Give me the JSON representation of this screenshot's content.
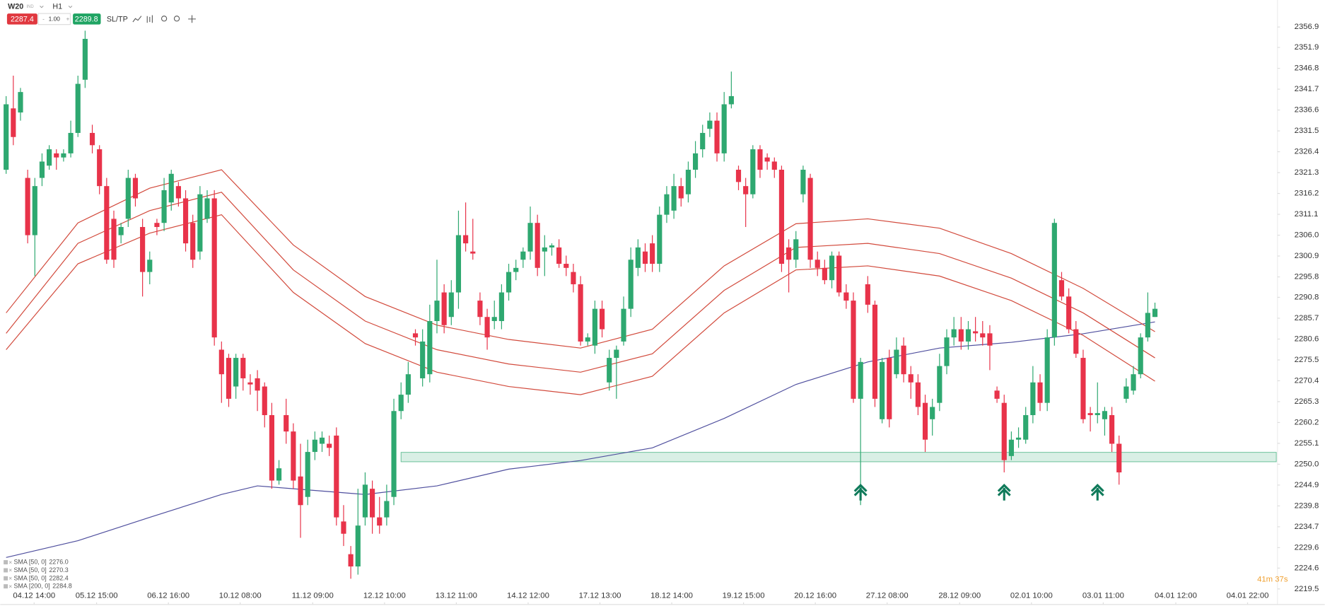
{
  "toolbar": {
    "symbol": "W20",
    "tag": "IND",
    "interval": "H1",
    "sell": "2287.4",
    "volume": "1.00",
    "buy": "2289.8",
    "sltp": "SL/TP"
  },
  "timer": "41m 37s",
  "chart_data": {
    "type": "candlestick",
    "colors": {
      "up": "#2ea870",
      "down": "#e8334a"
    },
    "xlim": [
      -0.82,
      177.06
    ],
    "ylim": [
      2215.8,
      2363.5
    ],
    "grid": false,
    "xticks": [
      {
        "value": 3.9,
        "label": "04.12 14:00"
      },
      {
        "value": 12.6,
        "label": "05.12 15:00"
      },
      {
        "value": 22.6,
        "label": "06.12 16:00"
      },
      {
        "value": 32.6,
        "label": "10.12 08:00"
      },
      {
        "value": 42.7,
        "label": "11.12 09:00"
      },
      {
        "value": 52.7,
        "label": "12.12 10:00"
      },
      {
        "value": 62.7,
        "label": "13.12 11:00"
      },
      {
        "value": 72.7,
        "label": "14.12 12:00"
      },
      {
        "value": 82.7,
        "label": "17.12 13:00"
      },
      {
        "value": 92.7,
        "label": "18.12 14:00"
      },
      {
        "value": 102.7,
        "label": "19.12 15:00"
      },
      {
        "value": 112.7,
        "label": "20.12 16:00"
      },
      {
        "value": 122.7,
        "label": "27.12 08:00"
      },
      {
        "value": 132.8,
        "label": "28.12 09:00"
      },
      {
        "value": 142.8,
        "label": "02.01 10:00"
      },
      {
        "value": 152.8,
        "label": "03.01 11:00"
      },
      {
        "value": 162.9,
        "label": "04.01 12:00"
      },
      {
        "value": 172.9,
        "label": "04.01 22:00"
      }
    ],
    "yticks": [
      2356.9,
      2351.9,
      2346.8,
      2341.7,
      2336.6,
      2331.5,
      2326.4,
      2321.3,
      2316.2,
      2311.1,
      {
        "value": 2306.0,
        "label": "2306.0"
      },
      2300.9,
      2295.8,
      2290.8,
      2285.7,
      2280.6,
      2275.5,
      2270.4,
      2265.3,
      2260.2,
      2255.1,
      {
        "value": 2250.0,
        "label": "2250.0"
      },
      2244.9,
      2239.8,
      2234.7,
      2229.6,
      2224.6,
      2219.5
    ],
    "open": [
      2322,
      2337,
      2336,
      2320,
      2306,
      2320,
      2323,
      2326,
      2325,
      2326,
      2331,
      2344,
      2331,
      2327,
      2318,
      2310,
      2306,
      2310,
      2320,
      2308,
      2297,
      2309,
      2309,
      2314,
      2318,
      2315,
      2309,
      2302,
      2310,
      2315,
      2278,
      2276,
      2269,
      2276,
      2270,
      2271,
      2269,
      2262,
      2246,
      2262,
      2258,
      2247,
      2242,
      2253,
      2255,
      2255,
      2257,
      2236,
      2228,
      2225,
      2237,
      2244,
      2237,
      2237,
      2242,
      2263,
      2267,
      2282,
      2271,
      2272,
      2285,
      2292,
      2286,
      2292,
      2306,
      2302,
      2290,
      2286,
      2285,
      2285,
      2292,
      2297,
      2300,
      2302,
      2309,
      2302,
      2303,
      2303,
      2299,
      2297,
      2294,
      2280,
      2279,
      2288,
      2270,
      2276,
      2280,
      2288,
      2298,
      2302,
      2304,
      2299,
      2311,
      2312,
      2318,
      2316,
      2322,
      2327,
      2332,
      2334,
      2326,
      2338,
      2322,
      2318,
      2316,
      2327,
      2325,
      2324,
      2322,
      2303,
      2300,
      2316,
      2320,
      2300,
      2298,
      2295,
      2301,
      2292,
      2290,
      2266,
      2294,
      2289,
      2261,
      2276,
      2272,
      2279,
      2272,
      2270,
      2265,
      2261,
      2265,
      2274,
      2281,
      2283,
      2280,
      2282.5,
      2282,
      2282,
      2268,
      2265,
      2252,
      2256,
      2256,
      2262,
      2270,
      2265,
      2281,
      2295,
      2291,
      2283,
      2276,
      2262.5,
      2262,
      2261,
      2262,
      2255,
      2266,
      2268,
      2272,
      2281,
      2286
    ],
    "high": [
      2340,
      2345,
      2342,
      2322,
      2320,
      2326,
      2328,
      2327,
      2327,
      2334,
      2345,
      2356,
      2333,
      2328,
      2320,
      2312,
      2309,
      2322,
      2321,
      2310,
      2302,
      2310,
      2320,
      2322,
      2319,
      2317,
      2311,
      2318,
      2317,
      2317,
      2280,
      2277,
      2277,
      2277,
      2272,
      2273,
      2270,
      2265,
      2251,
      2266,
      2260,
      2255,
      2256,
      2258,
      2258,
      2257,
      2259,
      2240,
      2230,
      2244,
      2248,
      2246,
      2242,
      2245,
      2266,
      2270,
      2275,
      2283,
      2283,
      2289,
      2300,
      2294,
      2295,
      2312,
      2314,
      2310,
      2292,
      2288,
      2290,
      2294,
      2299,
      2300,
      2303,
      2313,
      2311,
      2306,
      2304,
      2305,
      2301,
      2299,
      2296,
      2282,
      2290,
      2290,
      2278,
      2279,
      2291,
      2303,
      2305,
      2304,
      2306,
      2313,
      2318,
      2321,
      2320,
      2324,
      2329,
      2333,
      2336,
      2336,
      2341,
      2346,
      2323,
      2320,
      2328,
      2328,
      2326,
      2325,
      2323,
      2305,
      2307,
      2323,
      2321,
      2302,
      2300,
      2302,
      2302,
      2294,
      2292,
      2276,
      2296,
      2290,
      2276,
      2278,
      2281,
      2281,
      2274,
      2272,
      2267,
      2266,
      2277,
      2283,
      2286,
      2286,
      2285,
      2286,
      2285,
      2284,
      2269,
      2267,
      2258,
      2259,
      2264,
      2274,
      2272,
      2283,
      2310,
      2297,
      2293,
      2285,
      2278,
      2264,
      2270,
      2264,
      2264,
      2257,
      2271,
      2274,
      2282,
      2292,
      2289.5
    ],
    "low": [
      2321,
      2328,
      2334,
      2304,
      2296,
      2318,
      2322,
      2322,
      2324,
      2325,
      2330,
      2342,
      2326,
      2316,
      2299,
      2298,
      2304,
      2308,
      2313,
      2291,
      2294,
      2306,
      2307,
      2312,
      2313,
      2302,
      2298,
      2300,
      2309,
      2279,
      2265,
      2264,
      2266,
      2268,
      2267,
      2263,
      2259,
      2244,
      2245,
      2255,
      2244,
      2232,
      2240,
      2251,
      2253,
      2252,
      2235,
      2230,
      2222,
      2223,
      2235,
      2233,
      2233,
      2235,
      2240,
      2261,
      2265,
      2279,
      2269,
      2270,
      2282,
      2282,
      2284,
      2288,
      2302,
      2300,
      2284,
      2278,
      2283,
      2283,
      2290,
      2295,
      2298,
      2300,
      2296,
      2296,
      2301,
      2298,
      2296,
      2292,
      2279,
      2279,
      2277,
      2281,
      2268,
      2266,
      2279,
      2286,
      2296,
      2297,
      2297,
      2297,
      2309,
      2310,
      2313,
      2314,
      2320,
      2325,
      2330,
      2324,
      2324,
      2337,
      2317,
      2308,
      2315,
      2320,
      2322,
      2320,
      2297,
      2292,
      2298,
      2314,
      2298,
      2296,
      2294,
      2293,
      2291,
      2288,
      2265,
      2240,
      2287,
      2264,
      2260,
      2259,
      2271,
      2270,
      2266,
      2262,
      2253,
      2257,
      2263,
      2272,
      2279,
      2278,
      2278,
      2280,
      2279,
      2273,
      2265,
      2248,
      2251,
      2254,
      2255,
      2260,
      2263,
      2263,
      2279,
      2290,
      2282,
      2276,
      2260,
      2258,
      2260,
      2257,
      2253,
      2245,
      2265,
      2267,
      2271,
      2280,
      2286
    ],
    "close": [
      2338,
      2330,
      2341,
      2306,
      2318,
      2324,
      2327,
      2325,
      2326,
      2331,
      2343,
      2354,
      2328,
      2318,
      2300,
      2300,
      2308,
      2320,
      2315,
      2297,
      2300,
      2308,
      2317,
      2321,
      2315,
      2304,
      2300,
      2316,
      2315,
      2281,
      2272,
      2266,
      2276,
      2271,
      2269.5,
      2268,
      2262,
      2246,
      2249,
      2258,
      2246,
      2240,
      2253,
      2256,
      2256.5,
      2254,
      2237,
      2233,
      2225,
      2235,
      2245,
      2237,
      2235,
      2241,
      2263,
      2267,
      2272,
      2281,
      2280,
      2285,
      2290,
      2284,
      2292,
      2306,
      2304,
      2301.5,
      2286,
      2281,
      2286,
      2292,
      2297,
      2298,
      2302,
      2309,
      2298,
      2303,
      2303.5,
      2299,
      2298,
      2294,
      2280,
      2281,
      2288,
      2283,
      2276,
      2278,
      2288,
      2300,
      2303,
      2299,
      2299,
      2311,
      2316,
      2318,
      2315,
      2322,
      2326,
      2331,
      2334,
      2326,
      2338,
      2340,
      2319,
      2316,
      2327,
      2322,
      2324,
      2322,
      2299,
      2300,
      2305,
      2322,
      2300,
      2298,
      2295,
      2301,
      2292,
      2290,
      2266,
      2275,
      2289,
      2266,
      2275,
      2261,
      2278,
      2272,
      2270,
      2264,
      2256,
      2264,
      2274,
      2281,
      2283,
      2280,
      2283,
      2282,
      2281,
      2279,
      2266,
      2251,
      2256,
      2256.5,
      2262,
      2270,
      2265,
      2281,
      2309,
      2291,
      2283,
      2277,
      2261,
      2262,
      2262.5,
      2263,
      2255,
      2248,
      2269,
      2272,
      2281,
      2287,
      2288
    ],
    "series": [
      {
        "name": "SMA [50, 0]",
        "last_label": "2276.0",
        "color": "#d24a3c",
        "x": [
          0,
          10,
          20,
          30,
          40,
          50,
          60,
          70,
          80,
          90,
          100,
          110,
          120,
          130,
          140,
          150,
          160
        ],
        "values": [
          2282,
          2304,
          2312,
          2316.5,
          2297.5,
          2285,
          2278,
          2274.5,
          2272.5,
          2277,
          2292.5,
          2303,
          2304,
          2301.5,
          2295.5,
          2287,
          2276.0
        ]
      },
      {
        "name": "SMA [50, 0]",
        "last_label": "2270.3",
        "color": "#d24a3c",
        "x": [
          0,
          10,
          20,
          30,
          40,
          50,
          60,
          70,
          80,
          90,
          100,
          110,
          120,
          130,
          140,
          150,
          160
        ],
        "values": [
          2278,
          2299,
          2306.5,
          2311,
          2292,
          2279.5,
          2272.5,
          2269,
          2267,
          2271.5,
          2287,
          2297.5,
          2298.5,
          2296,
          2290,
          2281.5,
          2270.3
        ]
      },
      {
        "name": "SMA [50, 0]",
        "last_label": "2282.4",
        "color": "#d24a3c",
        "x": [
          0,
          10,
          20,
          30,
          40,
          50,
          60,
          70,
          80,
          90,
          100,
          110,
          120,
          130,
          140,
          150,
          160
        ],
        "values": [
          2287,
          2309,
          2317.5,
          2322,
          2303.6,
          2291,
          2284,
          2280.5,
          2278.4,
          2283,
          2298.5,
          2308.8,
          2310,
          2307.7,
          2301.5,
          2293,
          2282.4
        ]
      },
      {
        "name": "SMA [200, 0]",
        "last_label": "2284.8",
        "color": "#4f4f9e",
        "x": [
          0,
          10,
          20,
          30,
          35,
          40,
          50,
          60,
          70,
          80,
          90,
          100,
          110,
          120,
          130,
          140,
          150,
          160
        ],
        "values": [
          2227.2,
          2231.3,
          2237,
          2242.6,
          2244.7,
          2244,
          2242.6,
          2244.7,
          2248.8,
          2250.9,
          2254,
          2261.2,
          2269.5,
          2275,
          2278.4,
          2279.8,
          2281.9,
          2284.8
        ]
      }
    ],
    "zone": {
      "color": "#2ea870",
      "xmin": 55,
      "xmax": 176.9,
      "ymin": 2250.6,
      "ymax": 2252.9
    },
    "signals": {
      "color": "#0f7a5a",
      "x": [
        119,
        139,
        152
      ],
      "values": [
        2243.4,
        2243.4,
        2243.4
      ]
    }
  }
}
